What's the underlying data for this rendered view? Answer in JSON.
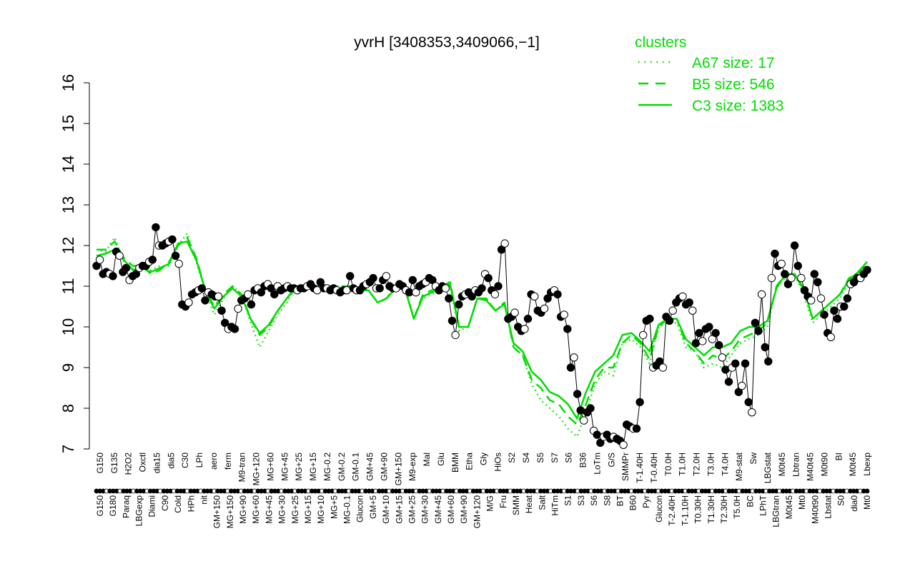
{
  "chart_data": {
    "type": "line",
    "title": "yvrH [3408353,3409066,−1]",
    "xlabel": "",
    "ylabel": "",
    "ylim": [
      7,
      16
    ],
    "yticks": [
      7,
      8,
      9,
      10,
      11,
      12,
      13,
      14,
      15,
      16
    ],
    "grid": false,
    "legend": {
      "title": "clusters",
      "placement": "top-right",
      "color": "#00dd00",
      "entries": [
        {
          "label": "A67 size: 17",
          "style": "dotted"
        },
        {
          "label": "B5 size: 546",
          "style": "dashed"
        },
        {
          "label": "C3 size: 1383",
          "style": "solid"
        }
      ]
    },
    "top_labels": [
      "G150",
      "G135",
      "H2O2",
      "Oxctl",
      "dia15",
      "dia5",
      "C30",
      "LPh",
      "aero",
      "ferm",
      "M9-tran",
      "MG+120",
      "MG+60",
      "MG+45",
      "MG+25",
      "MG+15",
      "MG-0.2",
      "GM-0.2",
      "GM-0.1",
      "GM+45",
      "GM+90",
      "GM+150",
      "M9-exp",
      "Mal",
      "Glu",
      "BMM",
      "Etha",
      "Gly",
      "HiOs",
      "S2",
      "S4",
      "S5",
      "S7",
      "S6",
      "B36",
      "LoTm",
      "G/S",
      "SMMPr",
      "T-1.40H",
      "T-0.40H",
      "T0.0H",
      "T1.0H",
      "T2.0H",
      "T3.0H",
      "T4.0H",
      "M9-stat",
      "Sw",
      "LBGstat",
      "M0t45",
      "Lbtran",
      "M40t45",
      "M0t90",
      "BI",
      "M0t45",
      "Lbexp"
    ],
    "bottom_labels": [
      "G150",
      "G180",
      "Paraq",
      "LBGexp",
      "Diami",
      "C90",
      "Cold",
      "HPh",
      "nit",
      "GM+150",
      "MG+150",
      "MG+90",
      "MG+60",
      "MG+45",
      "MG+30",
      "MG+25",
      "MG+15",
      "MG+10",
      "MG+5",
      "MG-0.1",
      "Glucon",
      "GM+5",
      "GM+10",
      "GM+15",
      "GM+25",
      "GM+30",
      "GM+45",
      "GM+60",
      "GM+90",
      "GM+120",
      "M/G",
      "Fru",
      "SMM",
      "Heat",
      "Salt",
      "HiTm",
      "S1",
      "S3",
      "S6",
      "S8",
      "BT",
      "B60",
      "Pyr",
      "Glucon",
      "T-2.40H",
      "T-1.10H",
      "T0.30H",
      "T1.30H",
      "T2.30H",
      "T5.0H",
      "BC",
      "LPhT",
      "LBGtran",
      "M0t45",
      "Mt0",
      "M40t90",
      "Lbstat",
      "S0",
      "dia0",
      "Mt0"
    ],
    "series": [
      {
        "style": "points",
        "y": [
          11.5,
          11.65,
          11.3,
          11.35,
          11.3,
          11.25,
          11.85,
          11.75,
          11.35,
          11.45,
          11.15,
          11.25,
          11.3,
          11.45,
          11.5,
          11.5,
          11.6,
          11.65,
          12.45,
          12.0,
          12.0,
          12.05,
          12.1,
          12.15,
          11.75,
          11.55,
          10.55,
          10.5,
          10.6,
          10.8,
          10.85,
          10.9,
          10.95,
          10.65,
          10.85,
          10.8,
          10.75,
          10.75,
          10.4,
          10.1,
          9.95,
          10.0,
          9.95,
          10.45,
          10.65,
          10.7,
          10.8,
          10.55,
          10.9,
          10.95,
          10.85,
          11.0,
          11.05,
          10.95,
          10.8,
          11.0,
          10.9,
          10.95,
          11.0,
          10.95,
          10.95,
          10.9,
          10.95,
          10.95,
          11.0,
          11.05,
          10.95,
          10.9,
          11.1,
          10.95,
          10.95,
          10.9,
          10.95,
          10.9,
          10.85,
          10.9,
          10.9,
          11.25,
          10.95,
          10.9,
          10.9,
          11.0,
          11.05,
          11.1,
          11.2,
          10.95,
          10.95,
          11.15,
          11.25,
          11.0,
          10.95,
          10.95,
          11.05,
          11.0,
          10.9,
          10.85,
          11.15,
          10.85,
          11.0,
          11.05,
          11.1,
          11.2,
          11.15,
          11.0,
          10.9,
          11.0,
          10.95,
          10.7,
          10.15,
          9.8,
          10.55,
          10.75,
          10.8,
          10.85,
          10.75,
          10.9,
          10.85,
          10.95,
          11.3,
          11.2,
          10.9,
          10.8,
          11.0,
          11.9,
          12.05,
          10.2,
          10.25,
          10.35,
          10.0,
          9.9,
          9.95,
          10.2,
          10.8,
          10.75,
          10.4,
          10.35,
          10.45,
          10.7,
          10.85,
          10.9,
          10.8,
          10.25,
          10.3,
          9.95,
          9.0,
          9.25,
          8.35,
          7.95,
          7.7,
          7.9,
          8.0,
          7.45,
          7.35,
          7.15,
          7.3,
          7.35,
          7.25,
          7.3,
          7.25,
          7.2,
          7.1,
          7.6,
          7.55,
          7.5,
          7.5,
          8.15,
          9.8,
          10.15,
          10.2,
          9.0,
          9.05,
          9.15,
          9.0,
          10.25,
          10.15,
          10.4,
          10.6,
          10.7,
          10.75,
          10.55,
          10.6,
          10.4,
          9.6,
          9.85,
          9.65,
          9.95,
          10.0,
          9.7,
          9.85,
          9.55,
          9.25,
          8.95,
          8.65,
          9.0,
          9.1,
          8.4,
          8.55,
          9.1,
          8.15,
          7.9,
          10.1,
          9.9,
          10.8,
          9.5,
          9.15,
          11.2,
          11.8,
          11.5,
          11.55,
          11.3,
          11.05,
          11.2,
          12.0,
          11.5,
          11.2,
          10.9,
          10.75,
          10.65,
          11.3,
          11.1,
          10.7,
          10.3,
          9.85,
          9.75,
          10.4,
          10.2,
          10.5,
          10.5,
          10.7,
          11.05,
          11.1,
          11.2,
          11.2,
          11.3,
          11.4
        ]
      },
      {
        "name": "A67 size: 17",
        "style": "dotted",
        "y": [
          11.9,
          11.85,
          12.2,
          11.6,
          11.4,
          11.5,
          11.4,
          11.5,
          11.5,
          12.0,
          12.3,
          11.6,
          10.9,
          10.3,
          10.7,
          11.0,
          10.8,
          10.1,
          9.5,
          9.9,
          10.3,
          10.6,
          11.0,
          11.0,
          11.0,
          11.0,
          11.0,
          11.0,
          11.0,
          11.0,
          10.9,
          10.6,
          10.7,
          11.0,
          11.0,
          10.2,
          10.7,
          10.8,
          11.0,
          11.0,
          9.9,
          10.0,
          10.7,
          10.7,
          10.4,
          10.6,
          9.5,
          9.3,
          8.6,
          8.2,
          8.0,
          7.8,
          7.5,
          7.3,
          7.9,
          8.6,
          8.9,
          8.8,
          9.6,
          9.7,
          9.5,
          9.1,
          10.0,
          10.1,
          10.1,
          9.5,
          9.4,
          9.0,
          9.1,
          9.0,
          9.3,
          9.6,
          9.7,
          9.8,
          10.0,
          11.0,
          11.2,
          11.3,
          10.8,
          10.1,
          10.3,
          10.5,
          10.7,
          11.1,
          11.3,
          11.6
        ]
      },
      {
        "name": "B5 size: 546",
        "style": "dashed",
        "y": [
          11.9,
          11.9,
          12.1,
          11.7,
          11.5,
          11.5,
          11.3,
          11.4,
          11.6,
          12.0,
          12.2,
          11.7,
          10.9,
          10.5,
          10.8,
          11.0,
          10.8,
          10.2,
          9.8,
          10.0,
          10.4,
          10.7,
          11.0,
          11.0,
          11.0,
          11.0,
          11.0,
          11.0,
          11.0,
          10.95,
          10.9,
          10.6,
          10.7,
          11.0,
          11.0,
          10.2,
          10.8,
          10.9,
          11.0,
          11.1,
          10.0,
          10.0,
          10.7,
          10.7,
          10.4,
          10.6,
          9.5,
          9.3,
          8.7,
          8.5,
          8.2,
          8.1,
          7.8,
          7.6,
          8.1,
          8.7,
          9.0,
          9.0,
          9.6,
          9.8,
          9.6,
          9.2,
          10.0,
          10.2,
          10.2,
          9.6,
          9.4,
          9.1,
          9.3,
          9.2,
          9.4,
          9.7,
          9.8,
          9.9,
          10.1,
          11.0,
          11.3,
          11.3,
          10.9,
          10.2,
          10.4,
          10.6,
          10.8,
          11.2,
          11.3,
          11.6
        ]
      },
      {
        "name": "C3 size: 1383",
        "style": "solid",
        "y": [
          11.75,
          11.8,
          11.9,
          11.65,
          11.4,
          11.45,
          11.35,
          11.45,
          11.55,
          12.05,
          12.1,
          11.65,
          10.9,
          10.45,
          10.75,
          10.95,
          10.75,
          10.2,
          9.85,
          10.05,
          10.4,
          10.7,
          10.95,
          10.95,
          10.95,
          10.95,
          10.95,
          10.95,
          10.9,
          10.9,
          10.9,
          10.6,
          10.7,
          10.95,
          10.95,
          10.2,
          10.75,
          10.85,
          10.95,
          11.05,
          10.0,
          10.0,
          10.7,
          10.65,
          10.4,
          10.55,
          9.6,
          9.4,
          8.9,
          8.7,
          8.4,
          8.3,
          8.1,
          7.75,
          8.4,
          8.9,
          9.1,
          9.3,
          9.8,
          9.85,
          9.65,
          9.4,
          10.05,
          10.2,
          10.2,
          9.7,
          9.5,
          9.3,
          9.5,
          9.5,
          9.6,
          9.9,
          10.0,
          10.0,
          10.15,
          10.95,
          11.3,
          11.3,
          10.95,
          10.2,
          10.4,
          10.6,
          10.8,
          11.15,
          11.35,
          11.6
        ]
      }
    ]
  }
}
